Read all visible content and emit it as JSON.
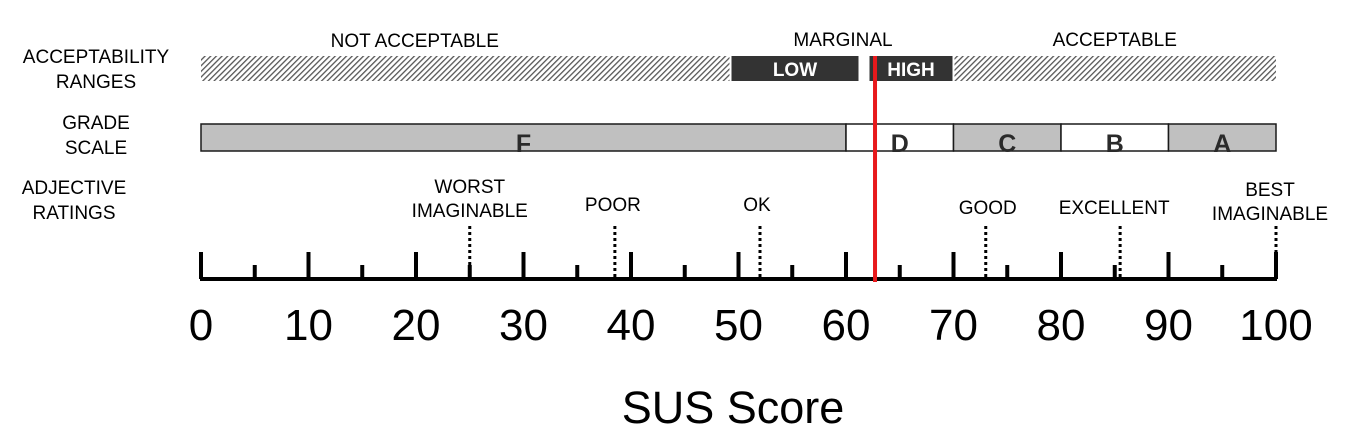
{
  "row_labels": {
    "acceptability_line1": "ACCEPTABILITY",
    "acceptability_line2": "RANGES",
    "grade_line1": "GRADE",
    "grade_line2": "SCALE",
    "adjective_line1": "ADJECTIVE",
    "adjective_line2": "RATINGS"
  },
  "acceptability": {
    "not_acceptable": {
      "label": "NOT  ACCEPTABLE",
      "from": 0,
      "to": 50
    },
    "marginal": {
      "label": "MARGINAL",
      "low": {
        "label": "LOW",
        "from": 50,
        "to": 62
      },
      "high": {
        "label": "HIGH",
        "from": 62,
        "to": 70
      }
    },
    "acceptable": {
      "label": "ACCEPTABLE",
      "from": 70,
      "to": 100
    }
  },
  "grades": [
    {
      "label": "F",
      "from": 0,
      "to": 60,
      "fill": "#c0c0c0"
    },
    {
      "label": "D",
      "from": 60,
      "to": 70,
      "fill": "#ffffff"
    },
    {
      "label": "C",
      "from": 70,
      "to": 80,
      "fill": "#c0c0c0"
    },
    {
      "label": "B",
      "from": 80,
      "to": 90,
      "fill": "#ffffff"
    },
    {
      "label": "A",
      "from": 90,
      "to": 100,
      "fill": "#c0c0c0"
    }
  ],
  "adjectives": [
    {
      "label": "WORST\nIMAGINABLE",
      "value": 25
    },
    {
      "label": "POOR",
      "value": 38.5
    },
    {
      "label": "OK",
      "value": 52
    },
    {
      "label": "GOOD",
      "value": 73
    },
    {
      "label": "EXCELLENT",
      "value": 85.5
    },
    {
      "label": "BEST\nIMAGINABLE",
      "value": 100
    }
  ],
  "axis": {
    "min": 0,
    "max": 100,
    "major_ticks": [
      0,
      10,
      20,
      30,
      40,
      50,
      60,
      70,
      80,
      90,
      100
    ],
    "tick_labels": [
      "0",
      "10",
      "20",
      "30",
      "40",
      "50",
      "60",
      "70",
      "80",
      "90",
      "100"
    ],
    "minor_ticks": [
      5,
      15,
      25,
      35,
      45,
      55,
      65,
      75,
      85,
      95
    ],
    "title": "SUS Score"
  },
  "marker": {
    "value": 62.7,
    "color": "#e8191c"
  },
  "colors": {
    "marginal_fill": "#333333",
    "grade_stroke": "#1a1a1a",
    "hatch": "#555555"
  }
}
